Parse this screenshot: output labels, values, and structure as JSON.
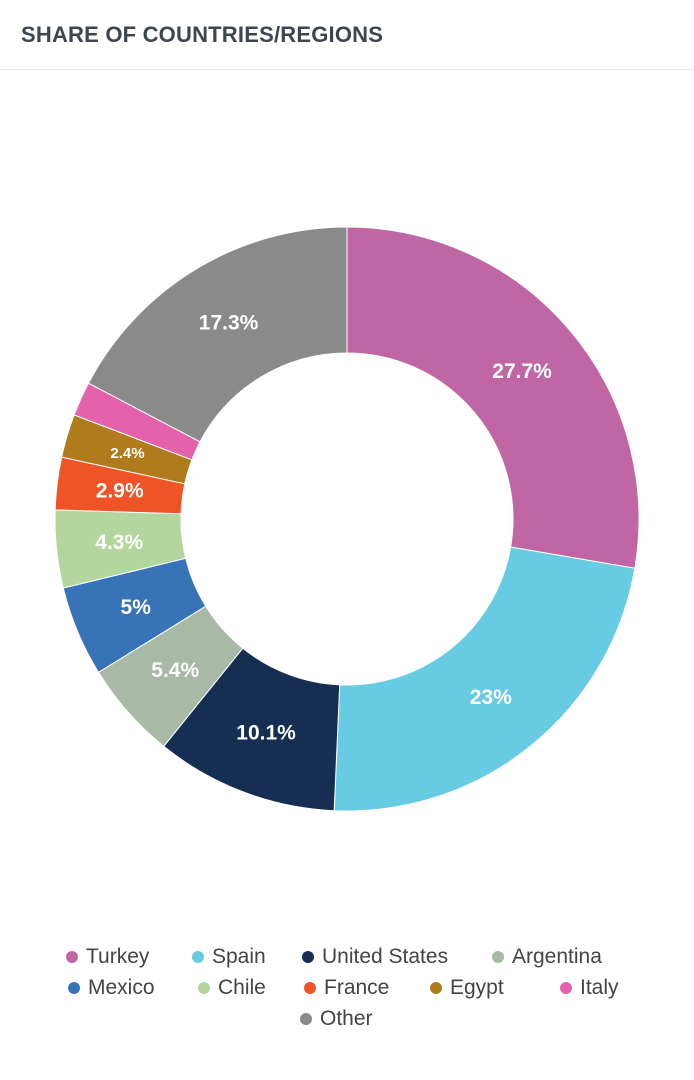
{
  "header": {
    "title": "SHARE OF COUNTRIES/REGIONS"
  },
  "chart_data": {
    "type": "pie",
    "title": "SHARE OF COUNTRIES/REGIONS",
    "donut": true,
    "legend_position": "bottom",
    "slices": [
      {
        "name": "Turkey",
        "value": 27.7,
        "label": "27.7%",
        "color": "#c066a4"
      },
      {
        "name": "Spain",
        "value": 23,
        "label": "23%",
        "color": "#67cbe4"
      },
      {
        "name": "United States",
        "value": 10.1,
        "label": "10.1%",
        "color": "#152e52"
      },
      {
        "name": "Argentina",
        "value": 5.4,
        "label": "5.4%",
        "color": "#a8b9a5"
      },
      {
        "name": "Mexico",
        "value": 5,
        "label": "5%",
        "color": "#3873b8"
      },
      {
        "name": "Chile",
        "value": 4.3,
        "label": "4.3%",
        "color": "#b3d69f"
      },
      {
        "name": "France",
        "value": 2.9,
        "label": "2.9%",
        "color": "#ef5426"
      },
      {
        "name": "Egypt",
        "value": 2.4,
        "label": "2.4%",
        "color": "#b07b1a"
      },
      {
        "name": "Italy",
        "value": 1.9,
        "label": "",
        "color": "#e461ab"
      },
      {
        "name": "Other",
        "value": 17.3,
        "label": "17.3%",
        "color": "#8a8a8a"
      }
    ]
  },
  "legend": {
    "rows": [
      [
        {
          "label": "Turkey",
          "color": "#c066a4"
        },
        {
          "label": "Spain",
          "color": "#67cbe4"
        },
        {
          "label": "United States",
          "color": "#152e52"
        },
        {
          "label": "Argentina",
          "color": "#a8b9a5"
        }
      ],
      [
        {
          "label": "Mexico",
          "color": "#3873b8"
        },
        {
          "label": "Chile",
          "color": "#b3d69f"
        },
        {
          "label": "France",
          "color": "#ef5426"
        },
        {
          "label": "Egypt",
          "color": "#b07b1a"
        },
        {
          "label": "Italy",
          "color": "#e461ab"
        }
      ],
      [
        {
          "label": "Other",
          "color": "#8a8a8a"
        }
      ]
    ]
  }
}
